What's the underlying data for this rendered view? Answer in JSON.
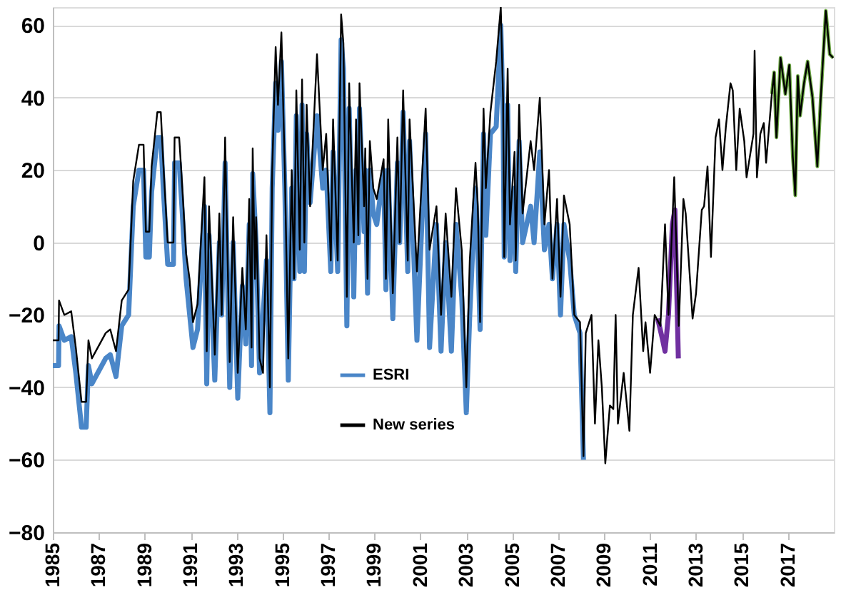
{
  "chart_data": {
    "type": "line",
    "xlim": [
      1985,
      2019
    ],
    "xticks": [
      1985,
      1987,
      1989,
      1991,
      1993,
      1995,
      1997,
      1999,
      2001,
      2003,
      2005,
      2007,
      2009,
      2011,
      2013,
      2015,
      2017
    ],
    "ylim": [
      -80,
      65
    ],
    "yticks": [
      -80,
      -60,
      -40,
      -20,
      0,
      20,
      40,
      60
    ],
    "grid": "y",
    "legend": "bottom",
    "series": [
      {
        "name": "ESRI",
        "color": "#4a86c8",
        "x": [
          1985.0,
          1985.25,
          1985.27,
          1985.5,
          1985.8,
          1986.0,
          1986.25,
          1986.45,
          1986.55,
          1986.7,
          1987.3,
          1987.5,
          1987.75,
          1988.0,
          1988.3,
          1988.5,
          1988.75,
          1988.95,
          1989.05,
          1989.2,
          1989.3,
          1989.55,
          1989.7,
          1989.8,
          1990.0,
          1990.25,
          1990.3,
          1990.5,
          1990.6,
          1990.8,
          1991.1,
          1991.3,
          1991.6,
          1991.7,
          1991.8,
          1992.05,
          1992.25,
          1992.35,
          1992.5,
          1992.7,
          1992.85,
          1993.05,
          1993.25,
          1993.4,
          1993.55,
          1993.65,
          1993.7,
          1993.85,
          1994.0,
          1994.3,
          1994.45,
          1994.55,
          1994.7,
          1994.8,
          1994.95,
          1995.1,
          1995.25,
          1995.4,
          1995.5,
          1995.6,
          1995.75,
          1995.85,
          1995.95,
          1996.05,
          1996.2,
          1996.5,
          1996.75,
          1996.9,
          1997.1,
          1997.2,
          1997.4,
          1997.55,
          1997.65,
          1997.8,
          1997.9,
          1998.1,
          1998.2,
          1998.3,
          1998.35,
          1998.55,
          1998.6,
          1998.7,
          1998.8,
          1998.95,
          1999.1,
          1999.4,
          1999.5,
          1999.6,
          1999.8,
          2000.0,
          2000.1,
          2000.25,
          2000.45,
          2000.53,
          2000.85,
          2001.23,
          2001.4,
          2001.7,
          2001.9,
          2002.1,
          2002.35,
          2002.55,
          2002.8,
          2003.0,
          2003.15,
          2003.4,
          2003.5,
          2003.6,
          2003.75,
          2003.85,
          2004.05,
          2004.3,
          2004.5,
          2004.6,
          2004.65,
          2004.8,
          2004.9,
          2005.1,
          2005.15,
          2005.3,
          2005.45,
          2005.8,
          2005.95,
          2006.2,
          2006.4,
          2006.6,
          2006.75,
          2006.95,
          2007.1,
          2007.25,
          2007.5,
          2007.7,
          2007.95,
          2008.1
        ],
        "values": [
          -34,
          -34,
          -23,
          -27,
          -26,
          -36,
          -51,
          -51,
          -34,
          -39,
          -32,
          -31,
          -37,
          -23,
          -20,
          10,
          20,
          20,
          -4,
          -4,
          14,
          29,
          29,
          16,
          -6,
          -6,
          22,
          22,
          12,
          -10,
          -29,
          -24,
          10,
          -39,
          2,
          -38,
          0,
          -20,
          22,
          -40,
          0,
          -43,
          -12,
          -28,
          5,
          -34,
          19,
          0,
          -36,
          -5,
          -47,
          15,
          44,
          31,
          50,
          15,
          -38,
          15,
          -10,
          35,
          -8,
          38,
          -8,
          30,
          11,
          35,
          15,
          20,
          -8,
          25,
          -8,
          56,
          48,
          -23,
          37,
          -15,
          20,
          0,
          37,
          3,
          20,
          -14,
          20,
          8,
          5,
          20,
          -13,
          20,
          -21,
          22,
          0,
          36,
          -8,
          28,
          -27,
          30,
          -29,
          5,
          -30,
          0,
          -30,
          5,
          -15,
          -47,
          -20,
          15,
          -2,
          -24,
          30,
          2,
          30,
          32,
          60,
          35,
          -4,
          38,
          -5,
          15,
          -8,
          28,
          0,
          10,
          0,
          25,
          -2,
          5,
          -10,
          5,
          -20,
          5,
          -5,
          -20,
          -25,
          -60
        ]
      },
      {
        "color": "#7030a0",
        "x": [
          2011.33,
          2011.55,
          2011.65,
          2011.8,
          2011.97,
          2012.08,
          2012.23
        ],
        "values": [
          -21,
          -27,
          -30,
          -20,
          5,
          9,
          -32
        ]
      },
      {
        "color": "#70ad47",
        "x": [
          2016.3,
          2016.4,
          2016.5,
          2016.68,
          2016.89,
          2017.06,
          2017.21,
          2017.32,
          2017.43,
          2017.53,
          2017.7,
          2017.86,
          2018.07,
          2018.28,
          2018.43,
          2018.65,
          2018.82,
          2018.97
        ],
        "values": [
          41,
          47,
          29,
          51,
          41,
          49,
          24,
          13,
          46,
          35,
          44,
          50,
          40,
          21,
          40,
          64,
          52,
          51
        ]
      },
      {
        "name": "New series",
        "color": "#000000",
        "x": [
          1985.0,
          1985.25,
          1985.27,
          1985.5,
          1985.8,
          1986.0,
          1986.25,
          1986.45,
          1986.55,
          1986.7,
          1987.3,
          1987.5,
          1987.75,
          1988.0,
          1988.3,
          1988.5,
          1988.75,
          1988.95,
          1989.05,
          1989.2,
          1989.3,
          1989.55,
          1989.7,
          1989.8,
          1990.0,
          1990.25,
          1990.3,
          1990.5,
          1990.6,
          1990.8,
          1990.95,
          1991.1,
          1991.3,
          1991.6,
          1991.7,
          1991.8,
          1992.05,
          1992.25,
          1992.35,
          1992.5,
          1992.7,
          1992.85,
          1993.05,
          1993.25,
          1993.4,
          1993.55,
          1993.65,
          1993.7,
          1993.8,
          1993.85,
          1994.0,
          1994.15,
          1994.3,
          1994.45,
          1994.55,
          1994.7,
          1994.8,
          1994.95,
          1995.1,
          1995.25,
          1995.4,
          1995.5,
          1995.6,
          1995.75,
          1995.85,
          1995.95,
          1996.05,
          1996.2,
          1996.3,
          1996.5,
          1996.75,
          1996.9,
          1997.1,
          1997.2,
          1997.4,
          1997.55,
          1997.65,
          1997.8,
          1997.9,
          1998.1,
          1998.2,
          1998.3,
          1998.35,
          1998.55,
          1998.6,
          1998.7,
          1998.8,
          1998.95,
          1999.1,
          1999.4,
          1999.5,
          1999.6,
          1999.8,
          2000.0,
          2000.1,
          2000.25,
          2000.45,
          2000.53,
          2000.85,
          2001.23,
          2001.4,
          2001.7,
          2001.9,
          2002.1,
          2002.35,
          2002.55,
          2002.8,
          2003.0,
          2003.15,
          2003.4,
          2003.5,
          2003.6,
          2003.75,
          2003.85,
          2004.05,
          2004.3,
          2004.5,
          2004.6,
          2004.65,
          2004.8,
          2004.9,
          2005.1,
          2005.15,
          2005.3,
          2005.45,
          2005.8,
          2005.95,
          2006.2,
          2006.4,
          2006.6,
          2006.75,
          2006.95,
          2007.1,
          2007.25,
          2007.5,
          2007.7,
          2007.95,
          2008.1,
          2008.2,
          2008.45,
          2008.6,
          2008.75,
          2008.9,
          2009.05,
          2009.25,
          2009.4,
          2009.5,
          2009.6,
          2009.85,
          2010.1,
          2010.25,
          2010.5,
          2010.7,
          2010.8,
          2011.0,
          2011.2,
          2011.45,
          2011.65,
          2011.8,
          2012.05,
          2012.25,
          2012.45,
          2012.55,
          2012.85,
          2013.0,
          2013.25,
          2013.35,
          2013.5,
          2013.65,
          2013.85,
          2014.0,
          2014.15,
          2014.3,
          2014.4,
          2014.5,
          2014.6,
          2014.75,
          2014.9,
          2015.1,
          2015.2,
          2015.5,
          2015.55,
          2015.65,
          2015.8,
          2015.95,
          2016.05,
          2016.3,
          2016.4,
          2016.5,
          2016.68,
          2016.89,
          2017.06,
          2017.21,
          2017.32,
          2017.43,
          2017.53,
          2017.7,
          2017.86,
          2018.07,
          2018.28,
          2018.43,
          2018.65,
          2018.82,
          2018.97
        ],
        "values": [
          -27,
          -27,
          -16,
          -20,
          -19,
          -29,
          -44,
          -44,
          -27,
          -32,
          -25,
          -24,
          -30,
          -16,
          -13,
          17,
          27,
          27,
          3,
          3,
          21,
          36,
          36,
          23,
          0,
          0,
          29,
          29,
          19,
          -3,
          -10,
          -22,
          -17,
          18,
          -30,
          10,
          -31,
          8,
          -20,
          29,
          -33,
          7,
          -36,
          -7,
          -24,
          12,
          -29,
          26,
          -10,
          7,
          -32,
          -36,
          2,
          -40,
          20,
          54,
          38,
          58,
          20,
          -32,
          20,
          -10,
          42,
          -2,
          45,
          0,
          38,
          10,
          25,
          52,
          20,
          30,
          -5,
          34,
          -5,
          63,
          55,
          -15,
          44,
          0,
          34,
          2,
          44,
          10,
          26,
          -10,
          28,
          15,
          12,
          23,
          -10,
          34,
          -14,
          29,
          0,
          42,
          -5,
          34,
          -8,
          37,
          -2,
          10,
          -20,
          8,
          -15,
          15,
          -2,
          -40,
          -5,
          22,
          10,
          -22,
          37,
          15,
          36,
          50,
          65,
          40,
          -4,
          48,
          5,
          25,
          -5,
          38,
          8,
          28,
          20,
          40,
          5,
          20,
          -10,
          12,
          -15,
          13,
          5,
          -20,
          -22,
          -59,
          -25,
          -20,
          -50,
          -27,
          -40,
          -61,
          -45,
          -46,
          -20,
          -50,
          -36,
          -52,
          -20,
          -7,
          -30,
          -22,
          -36,
          -20,
          -23,
          5,
          -20,
          18,
          -23,
          12,
          8,
          -21,
          -14,
          9,
          10,
          21,
          -4,
          29,
          34,
          20,
          32,
          38,
          44,
          42,
          20,
          37,
          28,
          18,
          30,
          53,
          18,
          30,
          33,
          22,
          41,
          47,
          29,
          51,
          41,
          49,
          24,
          13,
          46,
          35,
          44,
          50,
          40,
          21,
          40,
          64,
          52,
          51
        ]
      }
    ]
  }
}
